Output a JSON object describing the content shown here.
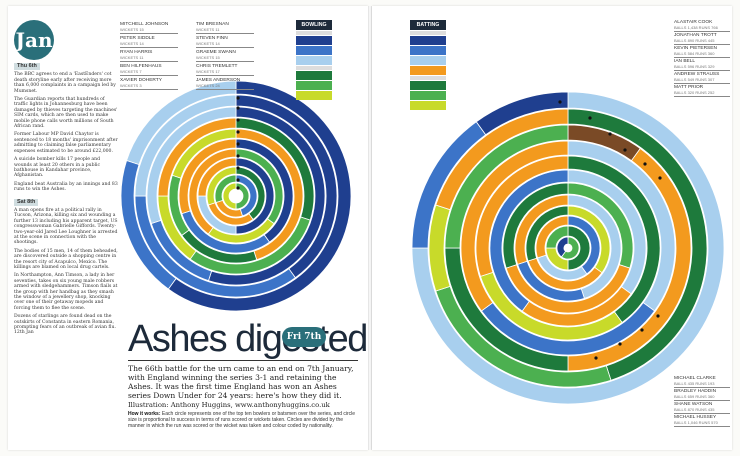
{
  "month": "Jan",
  "news": [
    {
      "date": "Thu 6th",
      "items": [
        "The BBC agrees to end a 'EastEnders' cot death storyline early after receiving more than 6,000 complaints in a campaign led by Mumsnet."
      ]
    },
    {
      "date": "",
      "items": [
        "The Guardian reports that hundreds of traffic lights in Johannesburg have been damaged by thieves targeting the machines' SIM cards, which are then used to make mobile phone calls worth millions of South African rand.",
        "Former Labour MP David Chaytor is sentenced to 18 months' imprisonment after admitting to claiming false parliamentary expenses estimated to be around £22,000.",
        "A suicide bomber kills 17 people and wounds at least 20 others in a public bathhouse in Kandahar province, Afghanistan.",
        "England beat Australia by an innings and 83 runs to win the Ashes."
      ]
    },
    {
      "date": "Sat 8th",
      "items": [
        "A man opens fire at a political rally in Tucson, Arizona, killing six and wounding a further 13 including his apparent target, US congresswoman Gabrielle Giffords. Twenty-two-year-old Jared Lee Loughner is arrested at the scene in connection with the shootings.",
        "The bodies of 15 men, 14 of them beheaded, are discovered outside a shopping centre in the resort city of Acapulco, Mexico. The killings are blamed on local drug cartels.",
        "In Northampton, Ann Timson, a lady in her seventies, takes on six young male robbers armed with sledgehammers. Timson flails at the group with her handbag as they smash the window of a jewellery shop, knocking over one of their getaway mopeds and forcing them to flee the scene.",
        "Dozens of starlings are found dead on the outskirts of Constanta in eastern Romania, prompting fears of an outbreak of avian flu. 12th Jan"
      ]
    }
  ],
  "headline": "Ashes digested",
  "headline_date": "Fri 7th",
  "intro": "The 66th battle for the urn came to an end on 7th January, with England winning the series 3-1 and retaining the Ashes. It was the first time England has won an Ashes series Down Under for 24 years: here's how they did it.",
  "credit": "Illustration: Anthony Huggins, www.anthonyhuggins.co.uk",
  "how_title": "How it works:",
  "how_text": "Each circle represents one of the top ten bowlers or batsmen over the series, and circle size is proportional to success in terms of runs scored or wickets taken. Circles are divided by the manner in which the run was scored or the wicket was taken and colour coded by nationality.",
  "bowling": {
    "title": "BOWLING",
    "players": [
      {
        "name": "Mitchell Johnson",
        "stat": "Wickets 15"
      },
      {
        "name": "Peter Siddle",
        "stat": "Wickets 14"
      },
      {
        "name": "Ryan Harris",
        "stat": "Wickets 11"
      },
      {
        "name": "Ben Hilfenhaus",
        "stat": "Wickets 7"
      },
      {
        "name": "Xavier Doherty",
        "stat": "Wickets 3"
      },
      {
        "name": "Tim Bresnan",
        "stat": "Wickets 11"
      },
      {
        "name": "Steven Finn",
        "stat": "Wickets 14"
      },
      {
        "name": "Graeme Swann",
        "stat": "Wickets 15"
      },
      {
        "name": "Chris Tremlett",
        "stat": "Wickets 17"
      },
      {
        "name": "James Anderson",
        "stat": "Wickets 24"
      }
    ]
  },
  "batting": {
    "title": "BATTING",
    "players_top": [
      {
        "name": "Alastair Cook",
        "stat": "Balls 1,438 Runs 766"
      },
      {
        "name": "Jonathan Trott",
        "stat": "Balls 890 Runs 445"
      },
      {
        "name": "Kevin Pietersen",
        "stat": "Balls 584 Runs 360"
      },
      {
        "name": "Ian Bell",
        "stat": "Balls 596 Runs 329"
      },
      {
        "name": "Andrew Strauss",
        "stat": "Balls 549 Runs 307"
      },
      {
        "name": "Matt Prior",
        "stat": "Balls 320 Runs 252"
      }
    ],
    "players_bottom": [
      {
        "name": "Michael Clarke",
        "stat": "Balls 435 Runs 193"
      },
      {
        "name": "Bradley Haddin",
        "stat": "Balls 659 Runs 360"
      },
      {
        "name": "Shane Watson",
        "stat": "Balls 870 Runs 435"
      },
      {
        "name": "Michael Hussey",
        "stat": "Balls 1,046 Runs 570"
      }
    ]
  },
  "colors": {
    "aus_dark": "#1f3f8f",
    "aus_mid": "#3c74c8",
    "aus_light": "#a8cfee",
    "eng_dark": "#1e7a3c",
    "eng_mid": "#4cb050",
    "eng_lime": "#c8da2a",
    "orange": "#f39a1e",
    "brown": "#7a4a26",
    "teal": "#2a6f7a"
  }
}
